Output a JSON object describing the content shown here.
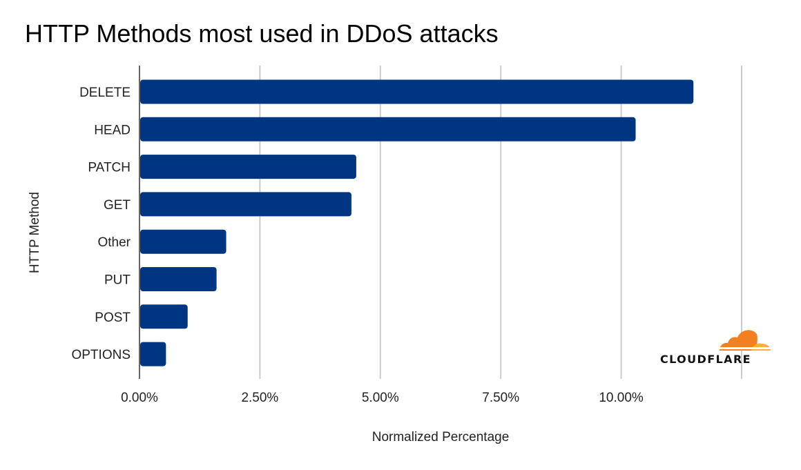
{
  "chart_data": {
    "type": "bar",
    "orientation": "horizontal",
    "title": "HTTP Methods most used in DDoS attacks",
    "xlabel": "Normalized Percentage",
    "ylabel": "HTTP Method",
    "categories": [
      "DELETE",
      "HEAD",
      "PATCH",
      "GET",
      "Other",
      "PUT",
      "POST",
      "OPTIONS"
    ],
    "values": [
      11.5,
      10.3,
      4.5,
      4.4,
      1.8,
      1.6,
      1.0,
      0.55
    ],
    "unit": "%",
    "xlim": [
      0,
      12.5
    ],
    "xticks": [
      0,
      2.5,
      5,
      7.5,
      10,
      12.5
    ],
    "xtick_labels": [
      "0.00%",
      "2.50%",
      "5.00%",
      "7.50%",
      "10.00%",
      ""
    ],
    "grid": true,
    "bar_color": "#003681",
    "grid_color": "#cccccc"
  },
  "branding": {
    "logo_text": "CLOUDFLARE",
    "logo_colors": [
      "#f38020",
      "#faae40"
    ]
  }
}
